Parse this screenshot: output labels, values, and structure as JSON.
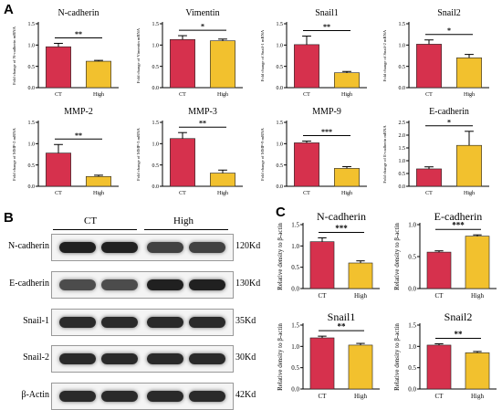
{
  "panels": {
    "A": "A",
    "B": "B",
    "C": "C"
  },
  "colors": {
    "ct": "#d6314d",
    "high": "#f2c12e"
  },
  "panel_a": [
    {
      "title": "N-cadherin",
      "ylabel": "Fold change of N-cadherin mRNA",
      "ticks": [
        "0.0",
        "0.5",
        "1.0",
        "1.5"
      ],
      "ymax": 1.5,
      "values": [
        0.96,
        0.62
      ],
      "errors": [
        0.08,
        0.02
      ],
      "sig": "**"
    },
    {
      "title": "Vimentin",
      "ylabel": "Fold change of Vimentin mRNA",
      "ticks": [
        "0.0",
        "0.5",
        "1.0",
        "1.5"
      ],
      "ymax": 1.5,
      "values": [
        1.13,
        1.1
      ],
      "errors": [
        0.09,
        0.04
      ],
      "sig": "*"
    },
    {
      "title": "Snail1",
      "ylabel": "Fold change of Snail-1 mRNA",
      "ticks": [
        "0.0",
        "0.5",
        "1.0",
        "1.5"
      ],
      "ymax": 1.5,
      "values": [
        1.01,
        0.35
      ],
      "errors": [
        0.2,
        0.03
      ],
      "sig": "**"
    },
    {
      "title": "Snail2",
      "ylabel": "Fold change of Snail-2 mRNA",
      "ticks": [
        "0.0",
        "0.5",
        "1.0",
        "1.5"
      ],
      "ymax": 1.5,
      "values": [
        1.02,
        0.7
      ],
      "errors": [
        0.1,
        0.08
      ],
      "sig": "*"
    },
    {
      "title": "MMP-2",
      "ylabel": "Fold change of MMP-2 mRNA",
      "ticks": [
        "0.0",
        "0.5",
        "1.0",
        "1.5"
      ],
      "ymax": 1.5,
      "values": [
        0.78,
        0.23
      ],
      "errors": [
        0.2,
        0.03
      ],
      "sig": "**"
    },
    {
      "title": "MMP-3",
      "ylabel": "Fold change of MMP-3 mRNA",
      "ticks": [
        "0.0",
        "0.5",
        "1.0",
        "1.5"
      ],
      "ymax": 1.5,
      "values": [
        1.12,
        0.31
      ],
      "errors": [
        0.14,
        0.07
      ],
      "sig": "**"
    },
    {
      "title": "MMP-9",
      "ylabel": "Fold change of MMP-9 mRNA",
      "ticks": [
        "0.0",
        "0.5",
        "1.0",
        "1.5"
      ],
      "ymax": 1.5,
      "values": [
        1.02,
        0.42
      ],
      "errors": [
        0.04,
        0.04
      ],
      "sig": "***"
    },
    {
      "title": "E-cadherin",
      "ylabel": "Fold change of E-cadherin mRNA",
      "ticks": [
        "0.0",
        "0.5",
        "1.0",
        "1.5",
        "2.0",
        "2.5"
      ],
      "ymax": 2.5,
      "values": [
        0.68,
        1.6
      ],
      "errors": [
        0.08,
        0.55
      ],
      "sig": "*"
    }
  ],
  "panel_c": [
    {
      "title": "N-cadherin",
      "ylabel": "Relative density to β-actin",
      "ticks": [
        "0.0",
        "0.5",
        "1.0",
        "1.5"
      ],
      "ymax": 1.5,
      "values": [
        1.1,
        0.6
      ],
      "errors": [
        0.09,
        0.05
      ],
      "sig": "***"
    },
    {
      "title": "E-cadherin",
      "ylabel": "Relative density to β-actin",
      "ticks": [
        "0.0",
        "0.5",
        "1.0"
      ],
      "ymax": 1.0,
      "values": [
        0.57,
        0.82
      ],
      "errors": [
        0.02,
        0.02
      ],
      "sig": "***"
    },
    {
      "title": "Snail1",
      "ylabel": "Relative density to β-actin",
      "ticks": [
        "0.0",
        "0.5",
        "1.0",
        "1.5"
      ],
      "ymax": 1.5,
      "values": [
        1.2,
        1.03
      ],
      "errors": [
        0.04,
        0.04
      ],
      "sig": "**"
    },
    {
      "title": "Snail2",
      "ylabel": "Relative density to β-actin",
      "ticks": [
        "0.0",
        "0.5",
        "1.0",
        "1.5"
      ],
      "ymax": 1.5,
      "values": [
        1.03,
        0.85
      ],
      "errors": [
        0.03,
        0.03
      ],
      "sig": "**"
    }
  ],
  "categories": [
    "CT",
    "High"
  ],
  "chart_data": [
    {
      "type": "bar",
      "title": "N-cadherin",
      "categories": [
        "CT",
        "High"
      ],
      "values": [
        0.96,
        0.62
      ],
      "ylabel": "Fold change of N-cadherin mRNA",
      "ylim": [
        0,
        1.5
      ]
    },
    {
      "type": "bar",
      "title": "Vimentin",
      "categories": [
        "CT",
        "High"
      ],
      "values": [
        1.13,
        1.1
      ],
      "ylabel": "Fold change of Vimentin mRNA",
      "ylim": [
        0,
        1.5
      ]
    },
    {
      "type": "bar",
      "title": "Snail1",
      "categories": [
        "CT",
        "High"
      ],
      "values": [
        1.01,
        0.35
      ],
      "ylabel": "Fold change of Snail-1 mRNA",
      "ylim": [
        0,
        1.5
      ]
    },
    {
      "type": "bar",
      "title": "Snail2",
      "categories": [
        "CT",
        "High"
      ],
      "values": [
        1.02,
        0.7
      ],
      "ylabel": "Fold change of Snail-2 mRNA",
      "ylim": [
        0,
        1.5
      ]
    },
    {
      "type": "bar",
      "title": "MMP-2",
      "categories": [
        "CT",
        "High"
      ],
      "values": [
        0.78,
        0.23
      ],
      "ylabel": "Fold change of MMP-2 mRNA",
      "ylim": [
        0,
        1.5
      ]
    },
    {
      "type": "bar",
      "title": "MMP-3",
      "categories": [
        "CT",
        "High"
      ],
      "values": [
        1.12,
        0.31
      ],
      "ylabel": "Fold change of MMP-3 mRNA",
      "ylim": [
        0,
        1.5
      ]
    },
    {
      "type": "bar",
      "title": "MMP-9",
      "categories": [
        "CT",
        "High"
      ],
      "values": [
        1.02,
        0.42
      ],
      "ylabel": "Fold change of MMP-9 mRNA",
      "ylim": [
        0,
        1.5
      ]
    },
    {
      "type": "bar",
      "title": "E-cadherin",
      "categories": [
        "CT",
        "High"
      ],
      "values": [
        0.68,
        1.6
      ],
      "ylabel": "Fold change of E-cadherin mRNA",
      "ylim": [
        0,
        2.5
      ]
    },
    {
      "type": "bar",
      "title": "N-cadherin",
      "categories": [
        "CT",
        "High"
      ],
      "values": [
        1.1,
        0.6
      ],
      "ylabel": "Relative density to β-actin",
      "ylim": [
        0,
        1.5
      ]
    },
    {
      "type": "bar",
      "title": "E-cadherin",
      "categories": [
        "CT",
        "High"
      ],
      "values": [
        0.57,
        0.82
      ],
      "ylabel": "Relative density to β-actin",
      "ylim": [
        0,
        1.0
      ]
    },
    {
      "type": "bar",
      "title": "Snail1",
      "categories": [
        "CT",
        "High"
      ],
      "values": [
        1.2,
        1.03
      ],
      "ylabel": "Relative density to β-actin",
      "ylim": [
        0,
        1.5
      ]
    },
    {
      "type": "bar",
      "title": "Snail2",
      "categories": [
        "CT",
        "High"
      ],
      "values": [
        1.03,
        0.85
      ],
      "ylabel": "Relative density to β-actin",
      "ylim": [
        0,
        1.5
      ]
    }
  ],
  "blot": {
    "groups": [
      "CT",
      "High"
    ],
    "rows": [
      {
        "protein": "N-cadherin",
        "size": "120Kd"
      },
      {
        "protein": "E-cadherin",
        "size": "130Kd"
      },
      {
        "protein": "Snail-1",
        "size": "35Kd"
      },
      {
        "protein": "Snail-2",
        "size": "30Kd"
      },
      {
        "protein": "β-Actin",
        "size": "42Kd"
      }
    ]
  }
}
